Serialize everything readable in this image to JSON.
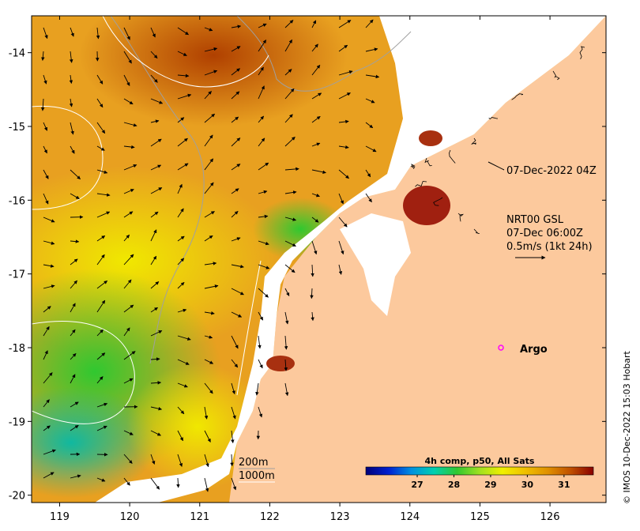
{
  "map": {
    "lon_range": [
      118.6,
      126.8
    ],
    "lat_range": [
      -20.1,
      -13.5
    ],
    "x_ticks": [
      {
        "value": 119,
        "label": "119"
      },
      {
        "value": 120,
        "label": "120"
      },
      {
        "value": 121,
        "label": "121"
      },
      {
        "value": 122,
        "label": "122"
      },
      {
        "value": 123,
        "label": "123"
      },
      {
        "value": 124,
        "label": "124"
      },
      {
        "value": 125,
        "label": "125"
      },
      {
        "value": 126,
        "label": "126"
      }
    ],
    "y_ticks": [
      {
        "value": -14,
        "label": "-14"
      },
      {
        "value": -15,
        "label": "-15"
      },
      {
        "value": -16,
        "label": "-16"
      },
      {
        "value": -17,
        "label": "-17"
      },
      {
        "value": -18,
        "label": "-18"
      },
      {
        "value": -19,
        "label": "-19"
      },
      {
        "value": -20,
        "label": "-20"
      }
    ],
    "colors": {
      "land": "#fcc99d",
      "cloud": "#ffffff",
      "argo": "#ff00ff",
      "contour_200": "#a0a0a0",
      "contour_1000": "#ffffff"
    }
  },
  "annotations": {
    "sst_time": "07-Dec-2022 04Z",
    "current_product": "NRT00 GSL",
    "current_time": "07-Dec 06:00Z",
    "current_scale": "0.5m/s (1kt 24h)",
    "argo_label": "Argo",
    "contour_200": "200m",
    "contour_1000": "1000m"
  },
  "colorbar": {
    "title": "4h comp, p50, All Sats",
    "range": [
      25.6,
      31.8
    ],
    "ticks": [
      {
        "value": 27,
        "label": "27"
      },
      {
        "value": 28,
        "label": "28"
      },
      {
        "value": 29,
        "label": "29"
      },
      {
        "value": 30,
        "label": "30"
      },
      {
        "value": 31,
        "label": "31"
      }
    ],
    "stops": [
      "#00007a",
      "#0020d0",
      "#0090e0",
      "#00d0b0",
      "#30c830",
      "#a0e020",
      "#f0f000",
      "#f0c000",
      "#e09000",
      "#c05000",
      "#8a0000"
    ]
  },
  "credit": "© IMOS 10-Dec-2022 15:03 Hobart",
  "argo_position": {
    "lon": 125.3,
    "lat": -18.0
  }
}
